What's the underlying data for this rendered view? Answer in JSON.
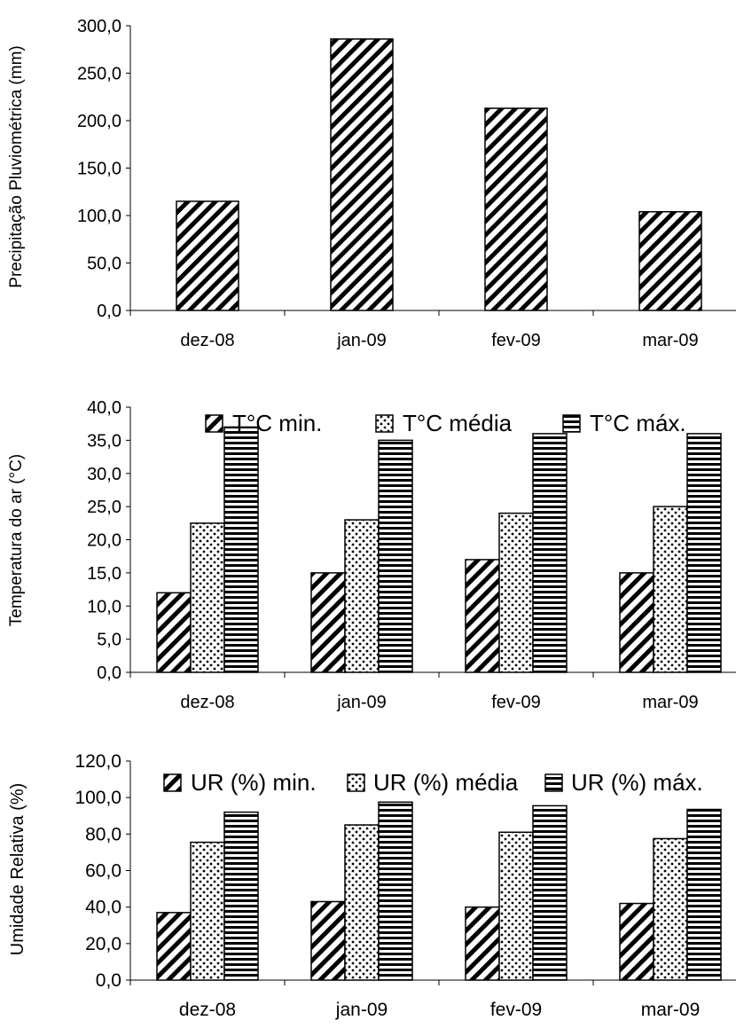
{
  "chart_data": [
    {
      "type": "bar",
      "categories": [
        "dez-08",
        "jan-09",
        "fev-09",
        "mar-09"
      ],
      "ylabel": "Precipitação Pluviométrica (mm)",
      "xlabel": "",
      "ylim": [
        0,
        300
      ],
      "yticks": [
        "0,0",
        "50,0",
        "100,0",
        "150,0",
        "200,0",
        "250,0",
        "300,0"
      ],
      "series": [
        {
          "values": [
            115,
            286,
            213,
            104
          ],
          "pattern": "diag"
        }
      ],
      "legend": "none"
    },
    {
      "type": "bar",
      "categories": [
        "dez-08",
        "jan-09",
        "fev-09",
        "mar-09"
      ],
      "ylabel": "Temperatura do ar (°C)",
      "xlabel": "",
      "ylim": [
        0,
        40
      ],
      "yticks": [
        "0,0",
        "5,0",
        "10,0",
        "15,0",
        "20,0",
        "25,0",
        "30,0",
        "35,0",
        "40,0"
      ],
      "series": [
        {
          "name": "T°C min.",
          "values": [
            12,
            15,
            17,
            15
          ],
          "pattern": "diag"
        },
        {
          "name": "T°C média",
          "values": [
            22.5,
            23,
            24,
            25
          ],
          "pattern": "dots"
        },
        {
          "name": "T°C máx.",
          "values": [
            37,
            35,
            36,
            36
          ],
          "pattern": "horiz"
        }
      ],
      "legend": "top"
    },
    {
      "type": "bar",
      "categories": [
        "dez-08",
        "jan-09",
        "fev-09",
        "mar-09"
      ],
      "ylabel": "Umidade Relativa (%)",
      "xlabel": "",
      "ylim": [
        0,
        120
      ],
      "yticks": [
        "0,0",
        "20,0",
        "40,0",
        "60,0",
        "80,0",
        "100,0",
        "120,0"
      ],
      "series": [
        {
          "name": "UR (%) min.",
          "values": [
            37,
            43,
            40,
            42
          ],
          "pattern": "diag"
        },
        {
          "name": "UR (%) média",
          "values": [
            75.5,
            85,
            81,
            77.5
          ],
          "pattern": "dots"
        },
        {
          "name": "UR (%) máx.",
          "values": [
            92,
            97.5,
            95.5,
            93.5
          ],
          "pattern": "horiz"
        }
      ],
      "legend": "top"
    }
  ]
}
